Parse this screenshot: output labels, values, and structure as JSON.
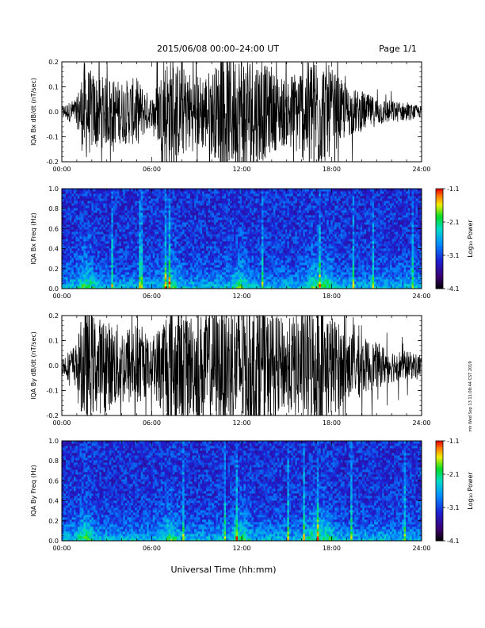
{
  "header": {
    "title": "2015/06/08  00:00–24:00 UT",
    "page": "Page 1/1"
  },
  "x_axis": {
    "label": "Universal Time (hh:mm)",
    "ticks": [
      "00:00",
      "06:00",
      "12:00",
      "18:00",
      "24:00"
    ]
  },
  "side_stamp": "mh Wed Sep 13 11:08:44 CST 2019",
  "chart_data": [
    {
      "type": "line",
      "ylabel": "IQA Bx dB/dt (nT/sec)",
      "xlim": [
        0,
        24
      ],
      "ylim": [
        -0.2,
        0.2
      ],
      "yticks": [
        -0.2,
        -0.1,
        0.0,
        0.1,
        0.2
      ],
      "ytick_labels": [
        "-0.2",
        "-0.1",
        "0.0",
        "0.1",
        "0.2"
      ],
      "xticks": [
        0,
        6,
        12,
        18,
        24
      ],
      "activity_envelope": {
        "hours": [
          0,
          1,
          1.5,
          2,
          3,
          4,
          5,
          6,
          7,
          8,
          9,
          10,
          11,
          12,
          13,
          14,
          15,
          16,
          17,
          18,
          19,
          20,
          21,
          22,
          23,
          24
        ],
        "amplitude": [
          0.02,
          0.05,
          0.18,
          0.14,
          0.12,
          0.11,
          0.12,
          0.05,
          0.2,
          0.16,
          0.13,
          0.15,
          0.2,
          0.22,
          0.2,
          0.14,
          0.12,
          0.17,
          0.22,
          0.15,
          0.09,
          0.07,
          0.05,
          0.04,
          0.03,
          0.02
        ]
      }
    },
    {
      "type": "heatmap",
      "ylabel": "IQA Bx Freq (Hz)",
      "xlim": [
        0,
        24
      ],
      "ylim": [
        0,
        1.0
      ],
      "yticks": [
        0.0,
        0.2,
        0.4,
        0.6,
        0.8,
        1.0
      ],
      "ytick_labels": [
        "0.0",
        "0.2",
        "0.4",
        "0.6",
        "0.8",
        "1.0"
      ],
      "xticks": [
        0,
        6,
        12,
        18,
        24
      ],
      "colorbar": {
        "label": "Log₁₀ Power",
        "range": [
          -4.1,
          -1.1
        ],
        "ticks": [
          -1.1,
          -2.1,
          -3.1,
          -4.1
        ],
        "tick_labels": [
          "-1.1",
          "-2.1",
          "-3.1",
          "-4.1"
        ]
      },
      "activity_hours": [
        1.6,
        7.2,
        11.9,
        16.9,
        17.6
      ]
    },
    {
      "type": "line",
      "ylabel": "IQA By dB/dt (nT/sec)",
      "xlim": [
        0,
        24
      ],
      "ylim": [
        -0.2,
        0.2
      ],
      "yticks": [
        -0.2,
        -0.1,
        0.0,
        0.1,
        0.2
      ],
      "ytick_labels": [
        "-0.2",
        "-0.1",
        "0.0",
        "0.1",
        "0.2"
      ],
      "xticks": [
        0,
        6,
        12,
        18,
        24
      ],
      "activity_envelope": {
        "hours": [
          0,
          1,
          1.5,
          2,
          3,
          4,
          5,
          6,
          7,
          8,
          9,
          10,
          11,
          12,
          13,
          14,
          15,
          16,
          17,
          18,
          19,
          20,
          21,
          22,
          23,
          24
        ],
        "amplitude": [
          0.03,
          0.08,
          0.22,
          0.18,
          0.16,
          0.14,
          0.15,
          0.08,
          0.22,
          0.2,
          0.18,
          0.2,
          0.22,
          0.24,
          0.22,
          0.18,
          0.16,
          0.2,
          0.24,
          0.18,
          0.12,
          0.1,
          0.08,
          0.06,
          0.05,
          0.04
        ]
      }
    },
    {
      "type": "heatmap",
      "ylabel": "IQA By Freq (Hz)",
      "xlim": [
        0,
        24
      ],
      "ylim": [
        0,
        1.0
      ],
      "yticks": [
        0.0,
        0.2,
        0.4,
        0.6,
        0.8,
        1.0
      ],
      "ytick_labels": [
        "0.0",
        "0.2",
        "0.4",
        "0.6",
        "0.8",
        "1.0"
      ],
      "xticks": [
        0,
        6,
        12,
        18,
        24
      ],
      "colorbar": {
        "label": "Log₁₀ Power",
        "range": [
          -4.1,
          -1.1
        ],
        "ticks": [
          -1.1,
          -2.1,
          -3.1,
          -4.1
        ],
        "tick_labels": [
          "-1.1",
          "-2.1",
          "-3.1",
          "-4.1"
        ]
      },
      "activity_hours": [
        1.6,
        7.2,
        11.9,
        16.9,
        17.6
      ]
    }
  ]
}
